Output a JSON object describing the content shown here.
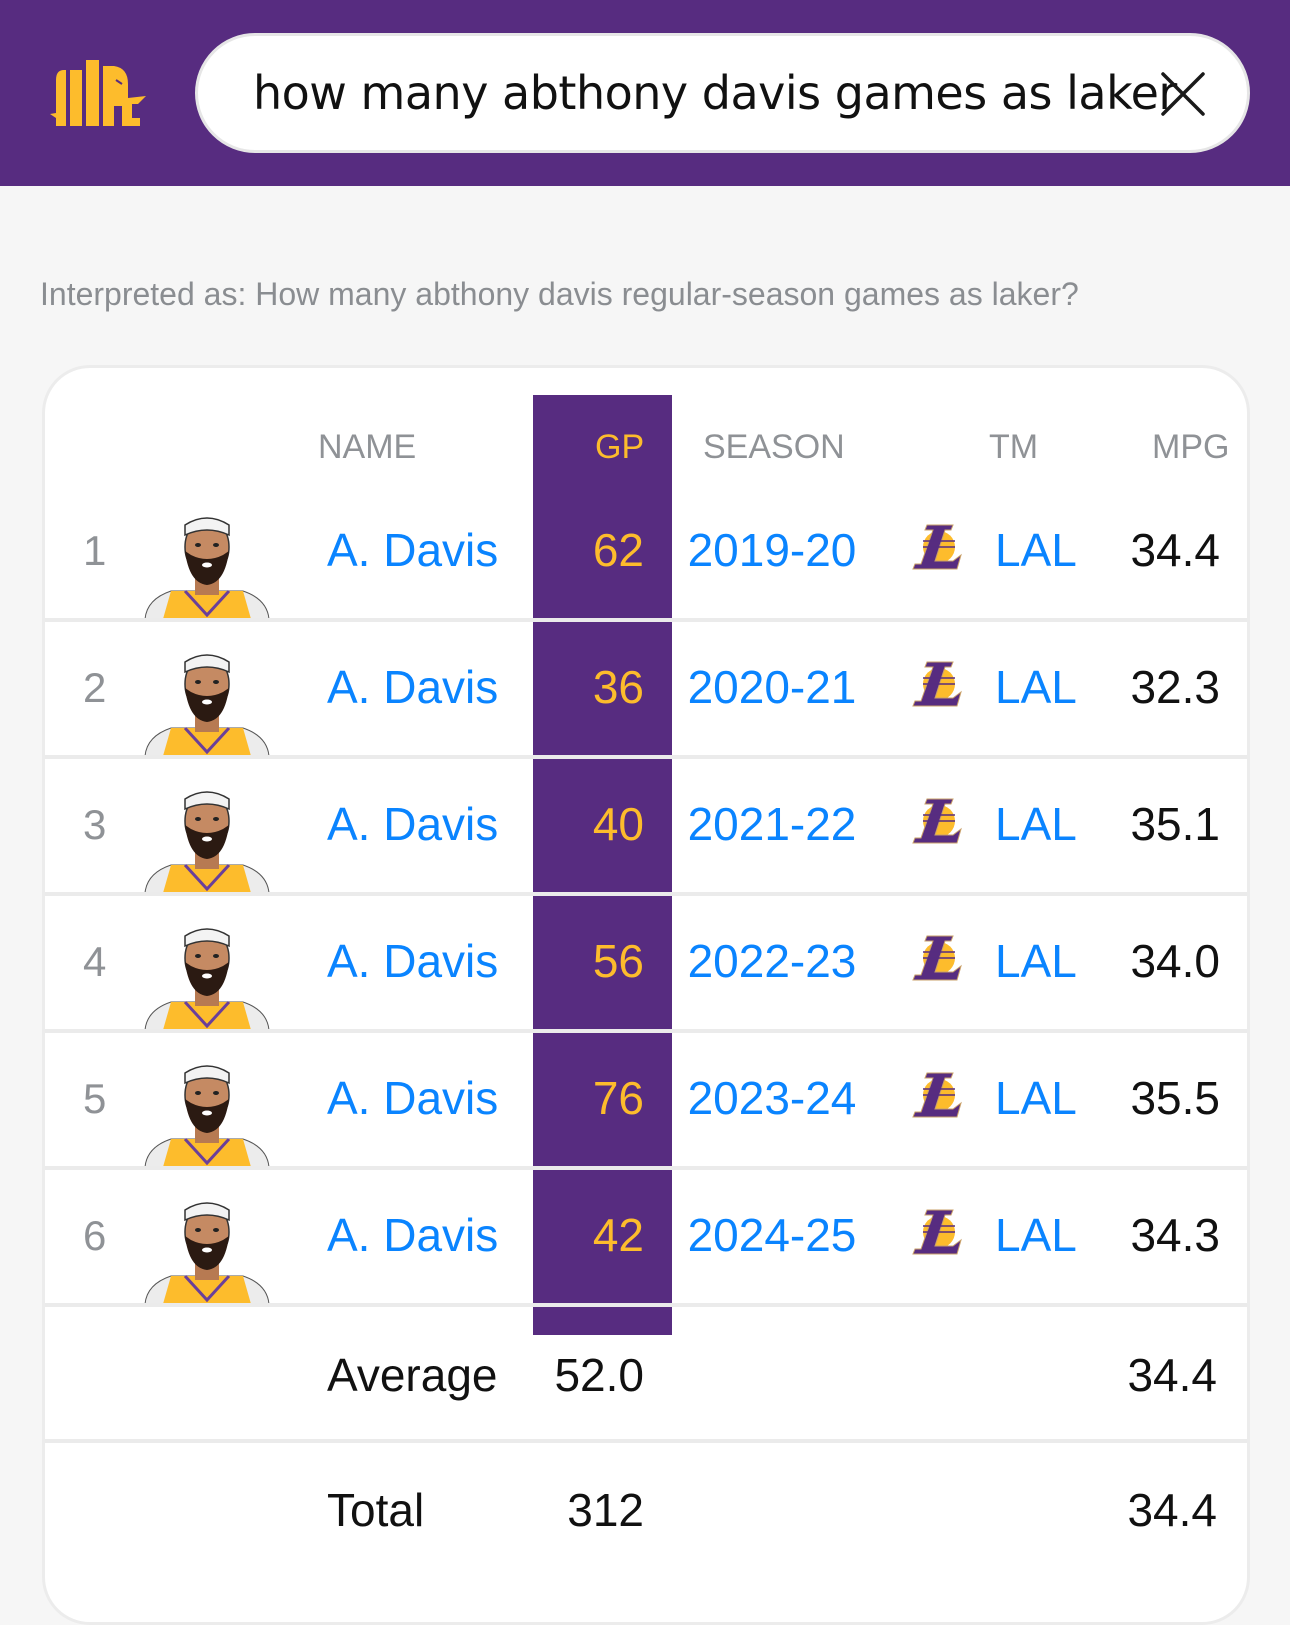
{
  "header": {
    "logo": "elephant-bars-logo",
    "search_query": "how many abthony davis games as laker",
    "clear_icon": "close-icon"
  },
  "interpreted_as": "Interpreted as: How many abthony davis regular-season games as laker?",
  "colors": {
    "brand_purple": "#572c80",
    "brand_gold": "#fdbc2c",
    "link_blue": "#0a84ff"
  },
  "table": {
    "columns": [
      "NAME",
      "GP",
      "SEASON",
      "TM",
      "MPG"
    ],
    "rows": [
      {
        "rank": "1",
        "name": "A. Davis",
        "gp": "62",
        "season": "2019-20",
        "team": "LAL",
        "mpg": "34.4"
      },
      {
        "rank": "2",
        "name": "A. Davis",
        "gp": "36",
        "season": "2020-21",
        "team": "LAL",
        "mpg": "32.3"
      },
      {
        "rank": "3",
        "name": "A. Davis",
        "gp": "40",
        "season": "2021-22",
        "team": "LAL",
        "mpg": "35.1"
      },
      {
        "rank": "4",
        "name": "A. Davis",
        "gp": "56",
        "season": "2022-23",
        "team": "LAL",
        "mpg": "34.0"
      },
      {
        "rank": "5",
        "name": "A. Davis",
        "gp": "76",
        "season": "2023-24",
        "team": "LAL",
        "mpg": "35.5"
      },
      {
        "rank": "6",
        "name": "A. Davis",
        "gp": "42",
        "season": "2024-25",
        "team": "LAL",
        "mpg": "34.3"
      }
    ],
    "summary": [
      {
        "label": "Average",
        "gp": "52.0",
        "mpg": "34.4"
      },
      {
        "label": "Total",
        "gp": "312",
        "mpg": "34.4"
      }
    ]
  }
}
